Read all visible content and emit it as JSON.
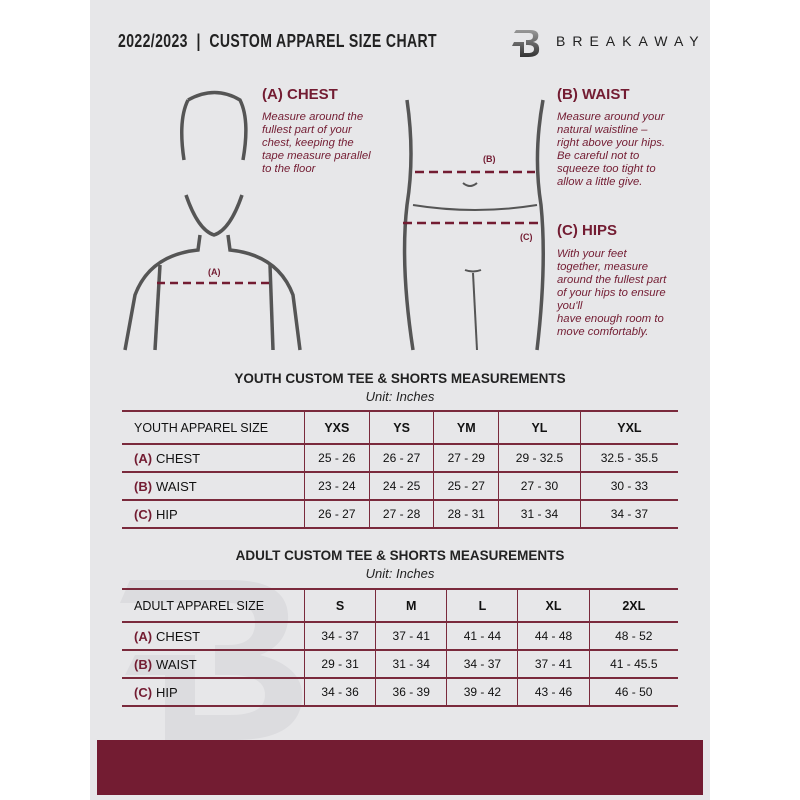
{
  "header": {
    "title": "2022/2023  |  CUSTOM APPAREL SIZE CHART",
    "brand": "BREAKAWAY",
    "logo_letter": "B"
  },
  "chest": {
    "heading": "(A) CHEST",
    "marker": "(A)",
    "lines": [
      "Measure around the",
      "fullest part of your",
      "chest, keeping the",
      "tape measure parallel",
      "to the floor"
    ]
  },
  "waist": {
    "heading": "(B) WAIST",
    "marker": "(B)",
    "lines": [
      "Measure around your",
      "natural waistline –",
      "right above your hips.",
      "Be careful not to",
      "squeeze too tight to",
      "allow a little give."
    ]
  },
  "hips": {
    "heading": "(C) HIPS",
    "marker": "(C)",
    "lines": [
      "With your feet",
      "together, measure",
      "around the fullest part",
      "of your hips to ensure",
      "you'll",
      "have enough room to",
      "move comfortably."
    ]
  },
  "youth": {
    "title": "YOUTH CUSTOM TEE & SHORTS MEASUREMENTS",
    "unit": "Unit: Inches",
    "header": [
      "YOUTH APPAREL SIZE",
      "YXS",
      "YS",
      "YM",
      "YL",
      "YXL"
    ],
    "rows": [
      {
        "code": "(A)",
        "label": "CHEST",
        "values": [
          "25 - 26",
          "26 - 27",
          "27 - 29",
          "29 - 32.5",
          "32.5 - 35.5"
        ]
      },
      {
        "code": "(B)",
        "label": "WAIST",
        "values": [
          "23 - 24",
          "24 - 25",
          "25 - 27",
          "27 - 30",
          "30 - 33"
        ]
      },
      {
        "code": "(C)",
        "label": "HIP",
        "values": [
          "26 - 27",
          "27 - 28",
          "28 - 31",
          "31 - 34",
          "34 - 37"
        ]
      }
    ]
  },
  "adult": {
    "title": "ADULT CUSTOM TEE & SHORTS MEASUREMENTS",
    "unit": "Unit: Inches",
    "header": [
      "ADULT APPAREL SIZE",
      "S",
      "M",
      "L",
      "XL",
      "2XL"
    ],
    "rows": [
      {
        "code": "(A)",
        "label": "CHEST",
        "values": [
          "34 - 37",
          "37 - 41",
          "41 - 44",
          "44 - 48",
          "48 - 52"
        ]
      },
      {
        "code": "(B)",
        "label": "WAIST",
        "values": [
          "29 - 31",
          "31 - 34",
          "34 - 37",
          "37 - 41",
          "41 - 45.5"
        ]
      },
      {
        "code": "(C)",
        "label": "HIP",
        "values": [
          "34 - 36",
          "36 - 39",
          "39 - 42",
          "43 - 46",
          "46 - 50"
        ]
      }
    ]
  },
  "colors": {
    "accent": "#731c32",
    "background": "#e7e7e9",
    "text": "#222222"
  }
}
